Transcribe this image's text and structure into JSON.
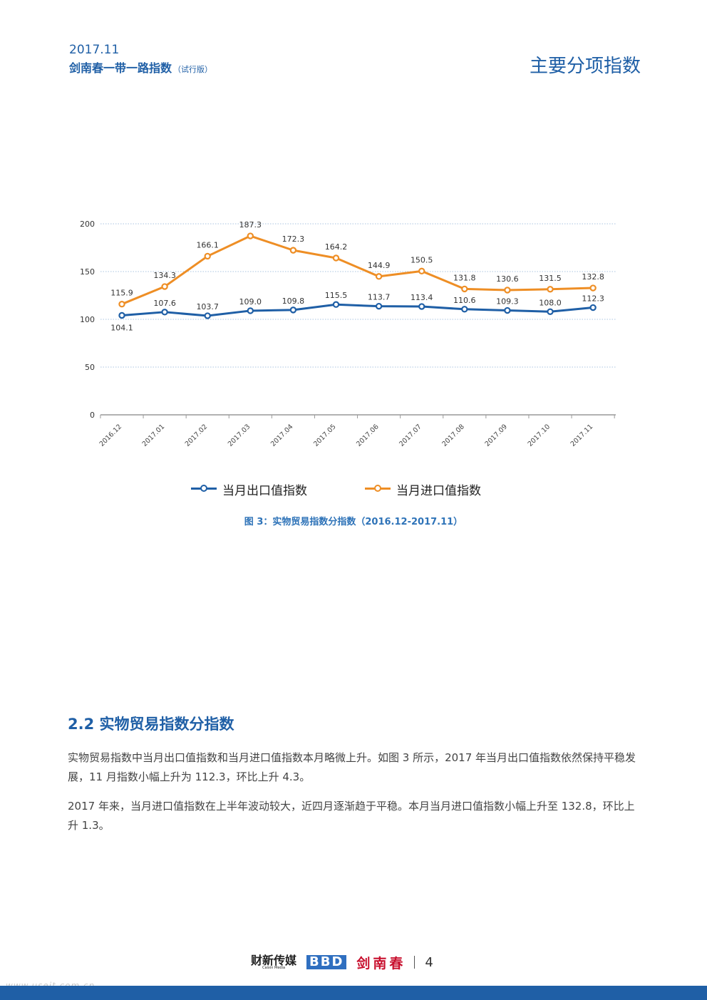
{
  "header": {
    "date": "2017.11",
    "brand": "剑南春一带一路指数",
    "brand_tag": "（试行版）",
    "section": "主要分项指数"
  },
  "chart_data": {
    "type": "line",
    "title": "图 3：实物贸易指数分指数（2016.12-2017.11）",
    "categories": [
      "2016.12",
      "2017.01",
      "2017.02",
      "2017.03",
      "2017.04",
      "2017.05",
      "2017.06",
      "2017.07",
      "2017.08",
      "2017.09",
      "2017.10",
      "2017.11"
    ],
    "series": [
      {
        "name": "当月出口值指数",
        "color": "#1f5fa6",
        "values": [
          104.1,
          107.6,
          103.7,
          109.0,
          109.8,
          115.5,
          113.7,
          113.4,
          110.6,
          109.3,
          108.0,
          112.3
        ],
        "labels": [
          "104.1",
          "107.6",
          "103.7",
          "109.0",
          "109.8",
          "115.5",
          "113.7",
          "113.4",
          "110.6",
          "109.3",
          "108.0",
          "112.3"
        ]
      },
      {
        "name": "当月进口值指数",
        "color": "#ee8e25",
        "values": [
          115.9,
          134.3,
          166.1,
          187.3,
          172.3,
          164.2,
          144.9,
          150.5,
          131.8,
          130.6,
          131.5,
          132.8
        ],
        "labels": [
          "115.9",
          "134.3",
          "166.1",
          "187.3",
          "172.3",
          "164.2",
          "144.9",
          "150.5",
          "131.8",
          "130.6",
          "131.5",
          "132.8"
        ]
      }
    ],
    "yticks": [
      0,
      50,
      100,
      150,
      200
    ],
    "ytick_labels": [
      "0",
      "50",
      "100",
      "150",
      "200"
    ],
    "ylim": [
      0,
      200
    ],
    "grid": true,
    "legend": "bottom-center",
    "xlabel": "",
    "ylabel": ""
  },
  "legend": {
    "export_label": "当月出口值指数",
    "import_label": "当月进口值指数"
  },
  "caption": "图 3：实物贸易指数分指数（2016.12-2017.11）",
  "section": {
    "title": "2.2 实物贸易指数分指数",
    "paragraph1": "实物贸易指数中当月出口值指数和当月进口值指数本月略微上升。如图 3 所示，2017 年当月出口值指数依然保持平稳发展，11 月指数小幅上升为 112.3，环比上升 4.3。",
    "paragraph2": "2017 年来，当月进口值指数在上半年波动较大，近四月逐渐趋于平稳。本月当月进口值指数小幅上升至 132.8，环比上升 1.3。"
  },
  "footer": {
    "logo_caixin": "财新传媒",
    "logo_caixin_sub": "Caixin Media",
    "logo_bbd": "BBD",
    "logo_jnc": "剑南春",
    "page_number": "4"
  },
  "watermark": "www.useit.com.cn"
}
